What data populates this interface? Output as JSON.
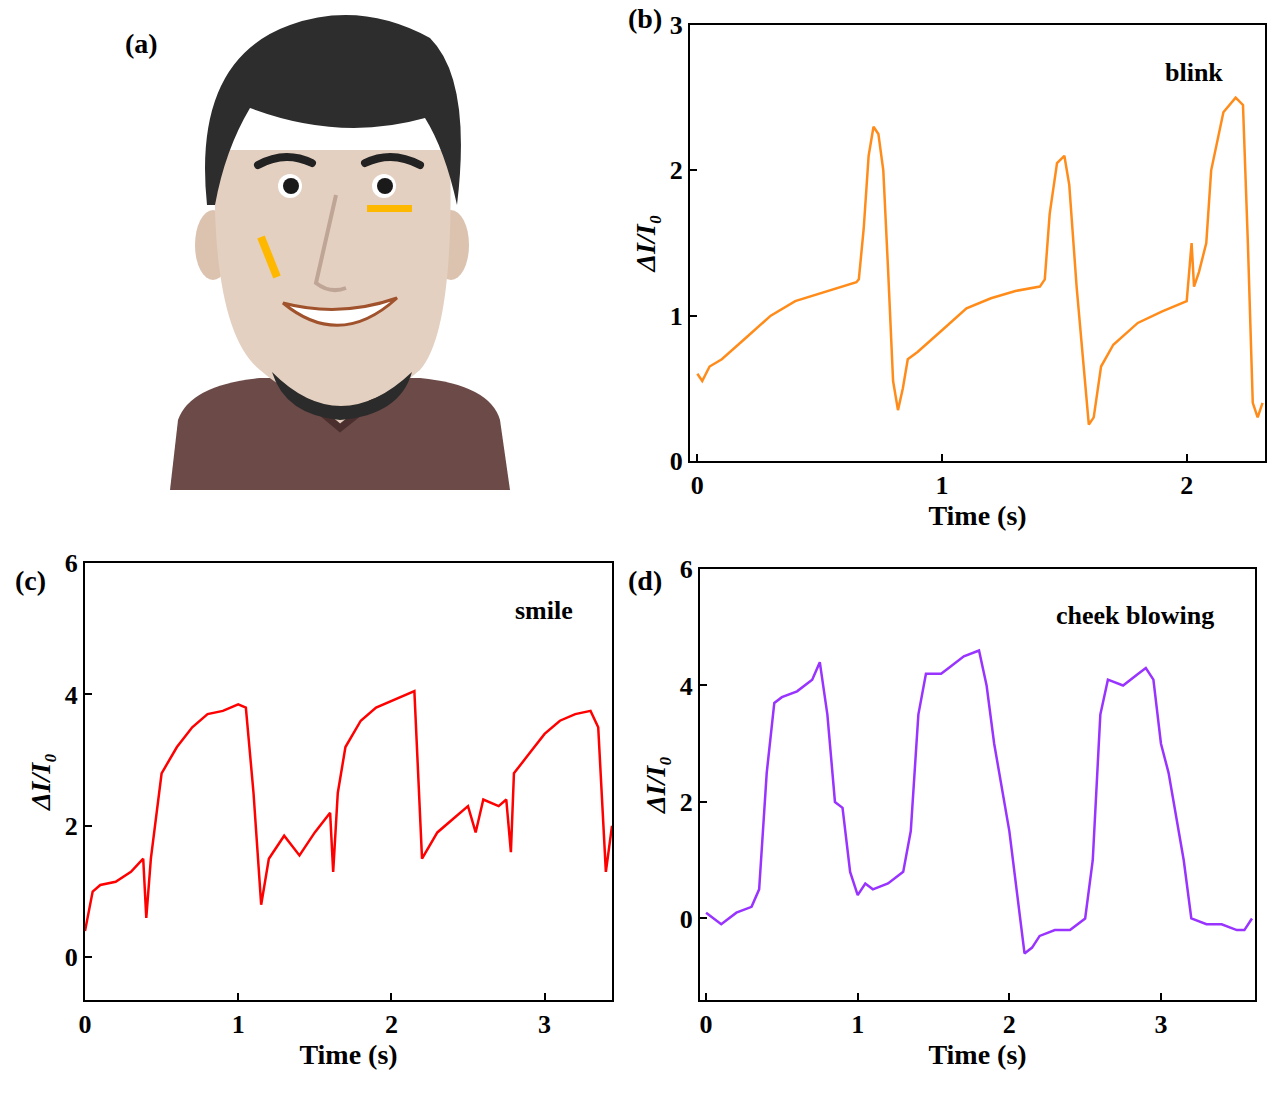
{
  "illustration": {
    "label": "(a)"
  },
  "chart_data": [
    {
      "type": "line",
      "label": "(b)",
      "annotation": "blink",
      "x_label": "Time (s)",
      "y_label": "ΔI/I₀",
      "color": "#ff8c1a",
      "grid": false,
      "xlim": [
        -0.03,
        2.32
      ],
      "ylim": [
        0,
        3
      ],
      "xticks": [
        0,
        1,
        2
      ],
      "yticks": [
        0,
        1,
        2,
        3
      ],
      "x": [
        0,
        0.02,
        0.05,
        0.1,
        0.2,
        0.3,
        0.4,
        0.5,
        0.6,
        0.65,
        0.66,
        0.68,
        0.7,
        0.72,
        0.74,
        0.76,
        0.78,
        0.8,
        0.82,
        0.84,
        0.86,
        0.9,
        1.0,
        1.1,
        1.2,
        1.3,
        1.4,
        1.42,
        1.44,
        1.47,
        1.5,
        1.52,
        1.55,
        1.58,
        1.6,
        1.62,
        1.65,
        1.7,
        1.8,
        1.9,
        2.0,
        2.02,
        2.03,
        2.05,
        2.08,
        2.1,
        2.15,
        2.2,
        2.23,
        2.25,
        2.27,
        2.29,
        2.31
      ],
      "values": [
        0.6,
        0.55,
        0.65,
        0.7,
        0.85,
        1.0,
        1.1,
        1.15,
        1.2,
        1.23,
        1.25,
        1.6,
        2.1,
        2.3,
        2.25,
        2.0,
        1.3,
        0.55,
        0.35,
        0.5,
        0.7,
        0.75,
        0.9,
        1.05,
        1.12,
        1.17,
        1.2,
        1.25,
        1.7,
        2.05,
        2.1,
        1.9,
        1.2,
        0.6,
        0.25,
        0.3,
        0.65,
        0.8,
        0.95,
        1.03,
        1.1,
        1.5,
        1.2,
        1.3,
        1.5,
        2.0,
        2.4,
        2.5,
        2.45,
        1.5,
        0.4,
        0.3,
        0.4
      ]
    },
    {
      "type": "line",
      "label": "(c)",
      "annotation": "smile",
      "x_label": "Time (s)",
      "y_label": "ΔI/I₀",
      "color": "#ff0000",
      "grid": false,
      "xlim": [
        0,
        3.44
      ],
      "ylim": [
        -0.65,
        6
      ],
      "xticks": [
        0,
        1,
        2,
        3
      ],
      "yticks": [
        0,
        2,
        4,
        6
      ],
      "x": [
        0,
        0.05,
        0.1,
        0.2,
        0.3,
        0.38,
        0.4,
        0.43,
        0.5,
        0.6,
        0.7,
        0.8,
        0.9,
        1.0,
        1.05,
        1.1,
        1.15,
        1.2,
        1.3,
        1.4,
        1.5,
        1.6,
        1.62,
        1.65,
        1.7,
        1.8,
        1.9,
        2.0,
        2.1,
        2.15,
        2.2,
        2.25,
        2.3,
        2.4,
        2.5,
        2.55,
        2.6,
        2.7,
        2.75,
        2.78,
        2.8,
        2.9,
        3.0,
        3.1,
        3.2,
        3.3,
        3.35,
        3.4,
        3.44
      ],
      "values": [
        0.4,
        1.0,
        1.1,
        1.15,
        1.3,
        1.5,
        0.6,
        1.5,
        2.8,
        3.2,
        3.5,
        3.7,
        3.75,
        3.85,
        3.8,
        2.5,
        0.8,
        1.5,
        1.85,
        1.55,
        1.9,
        2.2,
        1.3,
        2.5,
        3.2,
        3.6,
        3.8,
        3.9,
        4.0,
        4.05,
        1.5,
        1.7,
        1.9,
        2.1,
        2.3,
        1.9,
        2.4,
        2.3,
        2.4,
        1.6,
        2.8,
        3.1,
        3.4,
        3.6,
        3.7,
        3.75,
        3.5,
        1.3,
        2.0
      ]
    },
    {
      "type": "line",
      "label": "(d)",
      "annotation": "cheek blowing",
      "x_label": "Time (s)",
      "y_label": "ΔI/I₀",
      "color": "#9933ff",
      "grid": false,
      "xlim": [
        -0.04,
        3.62
      ],
      "ylim": [
        -1.4,
        6
      ],
      "xticks": [
        0,
        1,
        2,
        3
      ],
      "yticks": [
        0,
        2,
        4,
        6
      ],
      "x": [
        0,
        0.1,
        0.2,
        0.3,
        0.35,
        0.4,
        0.45,
        0.5,
        0.6,
        0.7,
        0.75,
        0.8,
        0.85,
        0.9,
        0.95,
        1.0,
        1.05,
        1.1,
        1.2,
        1.3,
        1.35,
        1.4,
        1.45,
        1.55,
        1.6,
        1.7,
        1.8,
        1.85,
        1.9,
        2.0,
        2.1,
        2.15,
        2.2,
        2.3,
        2.4,
        2.5,
        2.55,
        2.6,
        2.65,
        2.75,
        2.85,
        2.9,
        2.95,
        3.0,
        3.05,
        3.15,
        3.2,
        3.3,
        3.4,
        3.5,
        3.55,
        3.6
      ],
      "values": [
        0.1,
        -0.1,
        0.1,
        0.2,
        0.5,
        2.5,
        3.7,
        3.8,
        3.9,
        4.1,
        4.4,
        3.5,
        2.0,
        1.9,
        0.8,
        0.4,
        0.6,
        0.5,
        0.6,
        0.8,
        1.5,
        3.5,
        4.2,
        4.2,
        4.3,
        4.5,
        4.6,
        4.0,
        3.0,
        1.5,
        -0.6,
        -0.5,
        -0.3,
        -0.2,
        -0.2,
        0.0,
        1.0,
        3.5,
        4.1,
        4.0,
        4.2,
        4.3,
        4.1,
        3.0,
        2.5,
        1.0,
        0.0,
        -0.1,
        -0.1,
        -0.2,
        -0.2,
        0.0
      ]
    }
  ]
}
